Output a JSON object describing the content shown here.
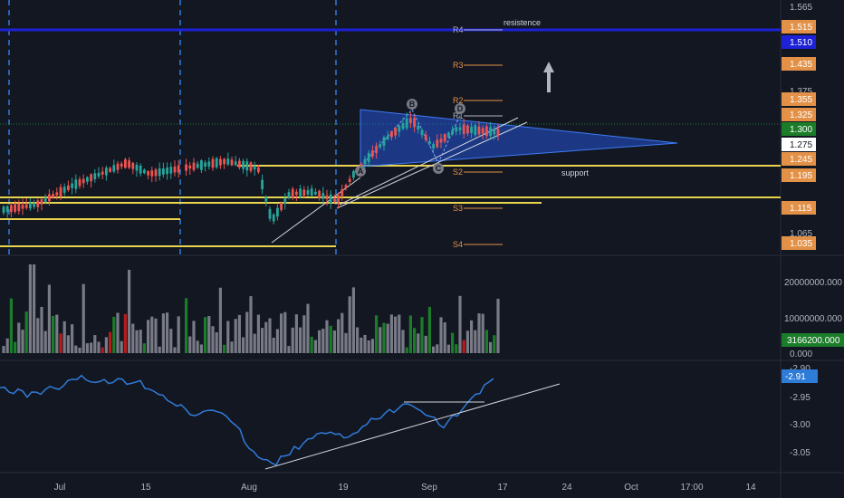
{
  "colors": {
    "background": "#131722",
    "grid": "#1f2432",
    "axis_text": "#b2b5be",
    "up": "#26a69a",
    "down": "#ef5350",
    "support_yellow": "#e8d44d",
    "resistance_blue": "#1e22d6",
    "pivot_orange": "#e39147",
    "pattern_fill": "#2962ff",
    "cci_line": "#2f7bd8",
    "volume_gray": "#787b86",
    "volume_green": "#1b7d2a",
    "volume_red": "#b71c1c"
  },
  "price_axis": {
    "ticks": [
      "1.565",
      "1.375",
      "1.065"
    ],
    "badges": [
      {
        "label": "1.515",
        "color": "#e39147"
      },
      {
        "label": "1.510",
        "color": "#1e22d6"
      },
      {
        "label": "1.435",
        "color": "#e39147"
      },
      {
        "label": "1.355",
        "color": "#e39147"
      },
      {
        "label": "1.325",
        "color": "#e39147"
      },
      {
        "label": "1.300",
        "color": "#1b7d2a"
      },
      {
        "label": "1.275",
        "color": "#ffffff"
      },
      {
        "label": "1.245",
        "color": "#e39147"
      },
      {
        "label": "1.195",
        "color": "#e39147"
      },
      {
        "label": "1.115",
        "color": "#e39147"
      },
      {
        "label": "1.035",
        "color": "#e39147"
      }
    ]
  },
  "volume_axis": {
    "ticks": [
      "20000000.000",
      "10000000.000",
      "0.000"
    ],
    "badge": "3166200.000"
  },
  "cci_axis": {
    "ticks": [
      "-2.90",
      "-2.95",
      "-3.00",
      "-3.05"
    ],
    "badge": "-2.91"
  },
  "time_axis": [
    "Jul",
    "15",
    "Aug",
    "19",
    "Sep",
    "17",
    "24",
    "Oct",
    "17:00",
    "14"
  ],
  "pivots": {
    "labels": [
      "R4",
      "R3",
      "R2",
      "R1",
      "S2",
      "S3",
      "S4"
    ]
  },
  "annotations": {
    "resistance": "resistence",
    "support": "support",
    "pattern_points": [
      "A",
      "B",
      "C",
      "D"
    ]
  },
  "chart_data": {
    "type": "candlestick",
    "price": {
      "ylim": [
        1.025,
        1.575
      ],
      "dates": [
        "2019-06-24",
        "2019-07-01",
        "2019-07-15",
        "2019-08-01",
        "2019-08-19",
        "2019-09-01",
        "2019-09-13"
      ],
      "note": ""
    },
    "volume_ylim": [
      0,
      25000000
    ],
    "cci_ylim": [
      -3.08,
      -2.9
    ]
  }
}
